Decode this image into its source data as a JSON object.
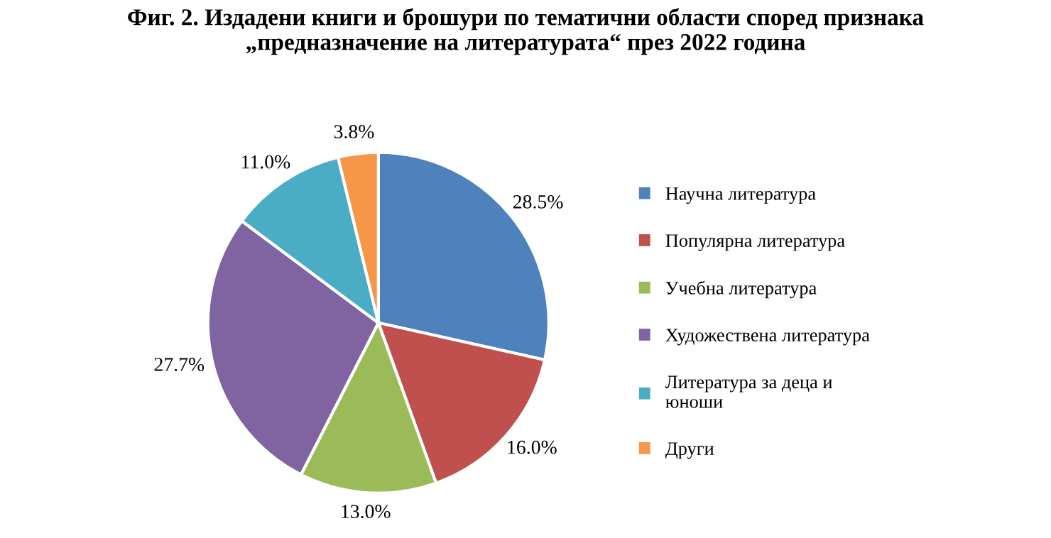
{
  "chart_data": {
    "type": "pie",
    "title": "Фиг. 2. Издадени книги и брошури по тематични области според признака\n„предназначение на литературата“ през 2022 година",
    "categories": [
      "Научна литература",
      "Популярна литература",
      "Учебна литература",
      "Художествена литература",
      "Литература за деца и\nюноши",
      "Други"
    ],
    "values": [
      28.5,
      16.0,
      13.0,
      27.7,
      11.0,
      3.8
    ],
    "value_labels": [
      "28.5%",
      "16.0%",
      "13.0%",
      "27.7%",
      "11.0%",
      "3.8%"
    ],
    "colors": [
      "#4f81bd",
      "#c0504d",
      "#9bbb59",
      "#8064a2",
      "#4bacc6",
      "#f79646"
    ],
    "legend": "right"
  }
}
